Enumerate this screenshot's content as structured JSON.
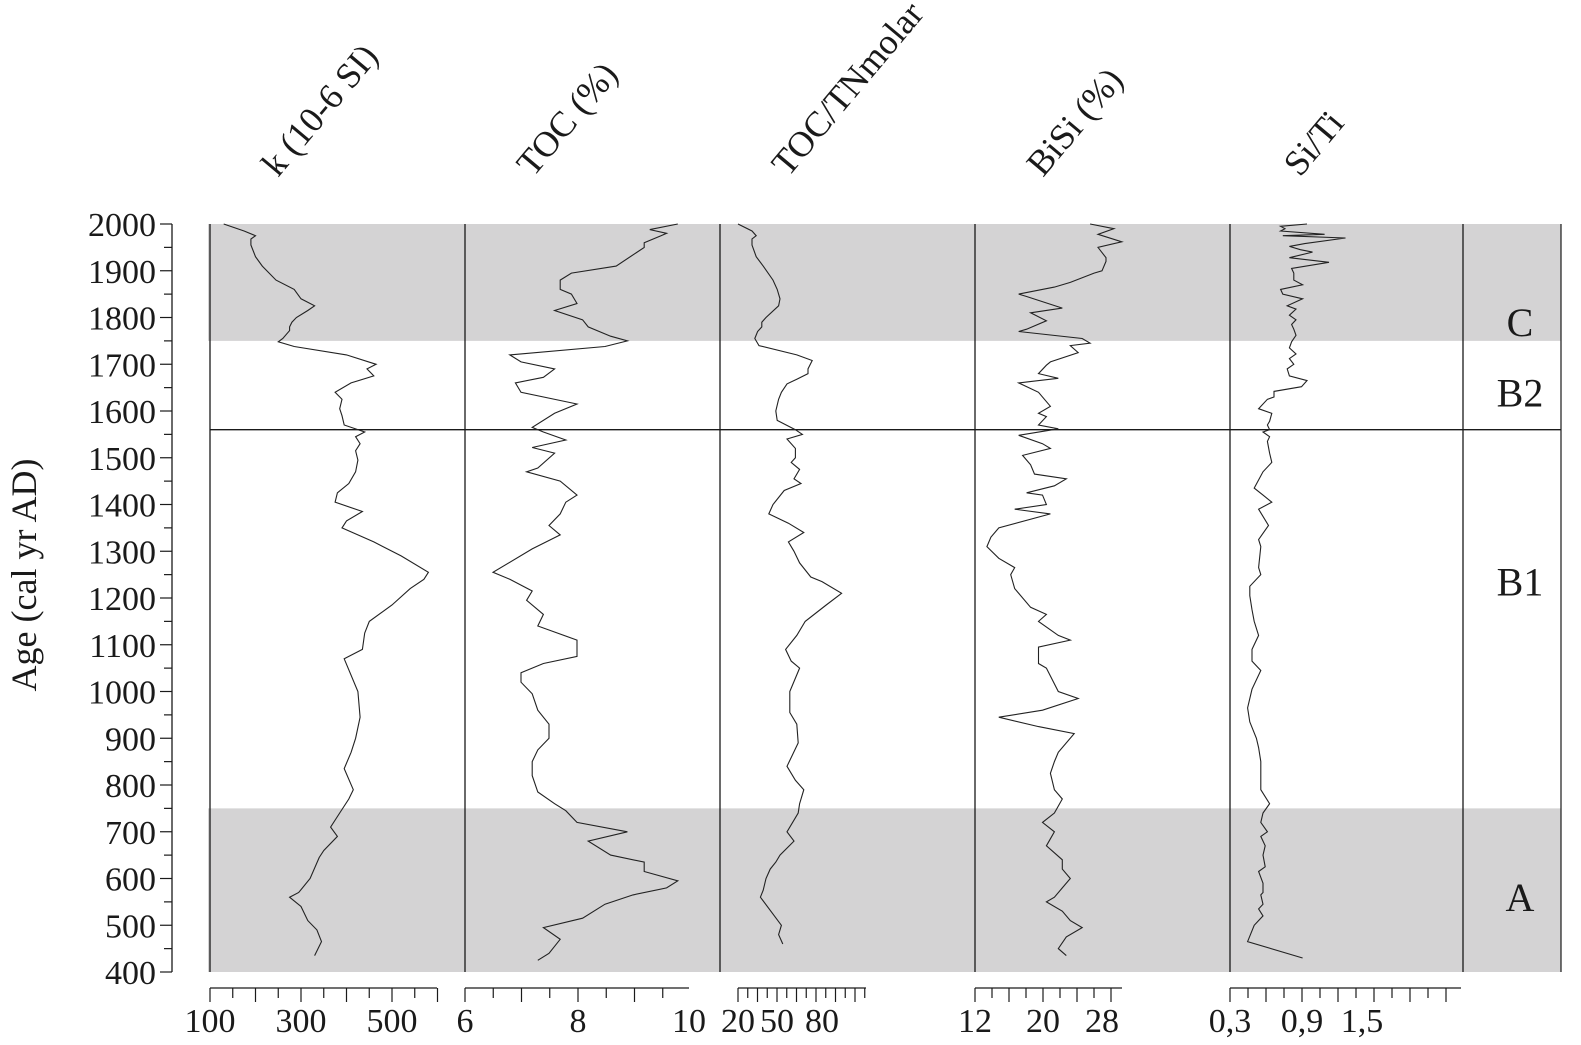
{
  "chart_data": {
    "type": "line",
    "title": "",
    "orientation": "stratigraphic (vertical age axis)",
    "ylabel": "Age (cal yr AD)",
    "ylim": [
      400,
      2000
    ],
    "y_ticks": [
      2000,
      1900,
      1800,
      1700,
      1600,
      1500,
      1400,
      1300,
      1200,
      1100,
      1000,
      900,
      800,
      700,
      600,
      500,
      400
    ],
    "grid": false,
    "zones": [
      {
        "label": "C",
        "from": 1750,
        "to": 2000,
        "shaded": true
      },
      {
        "label": "B2",
        "from": 1560,
        "to": 1750,
        "shaded": false
      },
      {
        "label": "B1",
        "from": 750,
        "to": 1560,
        "shaded": false
      },
      {
        "label": "A",
        "from": 400,
        "to": 750,
        "shaded": true
      }
    ],
    "zone_colors": {
      "shade": "#d4d3d4",
      "line": "#1a1a1a"
    },
    "panels": [
      {
        "name": "k (10-6 SI)",
        "xlabel": "k (10-6 SI)",
        "xlim": [
          100,
          600
        ],
        "x_ticks": [
          "100",
          "300",
          "500"
        ],
        "x_tick_values": [
          100,
          300,
          500
        ],
        "series": {
          "age": [
            2000,
            1985,
            1975,
            1968,
            1955,
            1930,
            1910,
            1880,
            1860,
            1840,
            1825,
            1815,
            1800,
            1790,
            1780,
            1772,
            1755,
            1748,
            1738,
            1720,
            1700,
            1690,
            1675,
            1660,
            1640,
            1625,
            1605,
            1590,
            1570,
            1555,
            1545,
            1530,
            1515,
            1495,
            1470,
            1445,
            1425,
            1405,
            1385,
            1365,
            1350,
            1320,
            1290,
            1255,
            1240,
            1220,
            1185,
            1150,
            1125,
            1090,
            1070,
            1000,
            945,
            900,
            870,
            835,
            790,
            770,
            740,
            710,
            690,
            660,
            645,
            600,
            570,
            560,
            540,
            510,
            490,
            465,
            435
          ],
          "value": [
            130,
            175,
            200,
            190,
            190,
            200,
            215,
            245,
            285,
            300,
            330,
            315,
            290,
            280,
            275,
            275,
            260,
            250,
            285,
            400,
            465,
            445,
            460,
            410,
            375,
            390,
            385,
            390,
            395,
            440,
            420,
            430,
            420,
            425,
            420,
            405,
            380,
            375,
            435,
            400,
            390,
            460,
            520,
            580,
            570,
            540,
            500,
            450,
            440,
            435,
            395,
            425,
            430,
            420,
            410,
            395,
            415,
            405,
            385,
            365,
            380,
            350,
            340,
            320,
            295,
            275,
            300,
            315,
            335,
            345,
            330
          ]
        }
      },
      {
        "name": "TOC (%)",
        "xlabel": "TOC (%)",
        "xlim": [
          6,
          10
        ],
        "x_ticks": [
          "6",
          "8",
          "10"
        ],
        "x_tick_values": [
          6,
          8,
          10
        ],
        "series": {
          "age": [
            2000,
            1988,
            1980,
            1975,
            1960,
            1950,
            1910,
            1895,
            1880,
            1860,
            1850,
            1830,
            1815,
            1795,
            1780,
            1760,
            1750,
            1738,
            1720,
            1705,
            1690,
            1672,
            1660,
            1640,
            1615,
            1595,
            1565,
            1555,
            1538,
            1522,
            1510,
            1478,
            1470,
            1450,
            1420,
            1405,
            1380,
            1355,
            1335,
            1305,
            1255,
            1240,
            1215,
            1195,
            1165,
            1140,
            1110,
            1075,
            1060,
            1040,
            1020,
            995,
            960,
            930,
            900,
            875,
            850,
            820,
            785,
            760,
            745,
            720,
            700,
            680,
            650,
            635,
            615,
            595,
            580,
            565,
            545,
            515,
            495,
            470,
            440,
            425
          ],
          "value": [
            9.8,
            9.3,
            9.6,
            9.5,
            9.2,
            9.2,
            8.7,
            7.9,
            7.7,
            7.7,
            7.9,
            8.0,
            7.6,
            8.1,
            8.2,
            8.6,
            8.9,
            8.5,
            6.8,
            7.0,
            7.6,
            7.4,
            6.9,
            7.0,
            8.0,
            7.6,
            7.2,
            7.4,
            7.8,
            7.2,
            7.6,
            7.3,
            7.1,
            7.7,
            8.0,
            7.8,
            7.7,
            7.5,
            7.7,
            7.2,
            6.5,
            6.8,
            7.2,
            7.1,
            7.4,
            7.3,
            8.0,
            8.0,
            7.4,
            7.0,
            7.0,
            7.2,
            7.3,
            7.5,
            7.5,
            7.3,
            7.2,
            7.2,
            7.3,
            7.6,
            7.8,
            8.0,
            8.9,
            8.2,
            8.6,
            9.2,
            9.2,
            9.8,
            9.6,
            9.0,
            8.5,
            8.1,
            7.4,
            7.7,
            7.5,
            7.3
          ]
        }
      },
      {
        "name": "TOC/TNmolar",
        "xlabel": "TOC/TNmolar",
        "xlim": [
          12,
          112
        ],
        "x_ticks": [
          "20",
          "50",
          "80"
        ],
        "x_tick_values": [
          20,
          50,
          80
        ],
        "series": {
          "age": [
            2000,
            1985,
            1975,
            1968,
            1955,
            1930,
            1910,
            1880,
            1860,
            1840,
            1825,
            1800,
            1790,
            1780,
            1770,
            1755,
            1740,
            1720,
            1708,
            1690,
            1680,
            1668,
            1658,
            1640,
            1625,
            1600,
            1580,
            1560,
            1550,
            1540,
            1520,
            1500,
            1490,
            1475,
            1455,
            1445,
            1430,
            1415,
            1400,
            1380,
            1360,
            1340,
            1320,
            1300,
            1275,
            1245,
            1235,
            1210,
            1185,
            1150,
            1120,
            1090,
            1065,
            1050,
            1000,
            955,
            930,
            890,
            840,
            810,
            790,
            760,
            740,
            700,
            680,
            650,
            635,
            620,
            600,
            575,
            560,
            520,
            500,
            480,
            460
          ],
          "value": [
            20,
            30,
            33,
            30,
            30,
            33,
            38,
            45,
            48,
            50,
            49,
            40,
            37,
            37,
            34,
            32,
            35,
            62,
            73,
            70,
            70,
            62,
            55,
            51,
            49,
            47,
            48,
            61,
            66,
            55,
            61,
            61,
            58,
            64,
            60,
            65,
            53,
            49,
            45,
            42,
            56,
            67,
            56,
            60,
            64,
            72,
            80,
            94,
            83,
            68,
            62,
            54,
            58,
            64,
            57,
            57,
            62,
            63,
            55,
            61,
            67,
            64,
            63,
            55,
            60,
            50,
            47,
            43,
            40,
            38,
            36,
            46,
            51,
            49,
            52
          ]
        }
      },
      {
        "name": "BiSi (%)",
        "xlabel": "BiSi (%)",
        "xlim": [
          12,
          32
        ],
        "x_ticks": [
          "12",
          "20",
          "28"
        ],
        "x_tick_values": [
          12,
          20,
          28
        ],
        "series": {
          "age": [
            2000,
            1990,
            1978,
            1962,
            1950,
            1928,
            1920,
            1900,
            1895,
            1875,
            1865,
            1850,
            1845,
            1820,
            1810,
            1793,
            1775,
            1770,
            1755,
            1745,
            1740,
            1725,
            1705,
            1698,
            1680,
            1670,
            1660,
            1640,
            1610,
            1595,
            1588,
            1570,
            1562,
            1548,
            1530,
            1520,
            1505,
            1485,
            1465,
            1455,
            1440,
            1425,
            1420,
            1400,
            1390,
            1380,
            1350,
            1330,
            1310,
            1285,
            1265,
            1250,
            1220,
            1180,
            1165,
            1150,
            1120,
            1110,
            1095,
            1060,
            1050,
            1000,
            985,
            960,
            945,
            925,
            910,
            870,
            850,
            825,
            790,
            770,
            740,
            720,
            700,
            670,
            655,
            640,
            620,
            600,
            580,
            560,
            550,
            530,
            510,
            495,
            475,
            450,
            435
          ],
          "value": [
            26.5,
            29.5,
            27.5,
            30.5,
            27.5,
            28.5,
            28.5,
            28,
            27,
            24,
            22,
            17.5,
            18.5,
            23,
            19,
            21,
            18.5,
            17.5,
            25.5,
            26.5,
            24,
            25,
            21.5,
            21,
            20,
            22.5,
            17.5,
            20,
            21.5,
            20,
            21,
            20,
            22.5,
            17.5,
            20.5,
            21.5,
            18,
            19,
            19.5,
            23.5,
            22,
            18.5,
            20.5,
            21,
            17,
            21.5,
            15,
            14,
            13.5,
            15,
            17,
            16.5,
            17,
            19,
            21,
            20,
            22.5,
            24,
            20,
            20,
            21,
            22.5,
            25,
            20.5,
            15,
            20,
            24.5,
            22.5,
            22,
            21.5,
            22,
            23,
            22,
            20.5,
            22,
            21,
            22,
            23,
            23,
            24,
            23,
            22,
            21,
            23,
            24,
            25.5,
            23.5,
            22.5,
            23.5
          ]
        }
      },
      {
        "name": "Si/Ti",
        "xlabel": "Si/Ti",
        "xlim": [
          0.3,
          1.5
        ],
        "x_ticks": [
          "0,3",
          "0,9",
          "1,5"
        ],
        "x_tick_values": [
          0.3,
          0.9,
          1.5
        ],
        "series": {
          "age": [
            2000,
            1995,
            1990,
            1985,
            1978,
            1975,
            1970,
            1958,
            1952,
            1945,
            1940,
            1928,
            1918,
            1905,
            1895,
            1880,
            1870,
            1860,
            1850,
            1840,
            1825,
            1818,
            1805,
            1795,
            1785,
            1775,
            1762,
            1748,
            1735,
            1722,
            1712,
            1700,
            1690,
            1675,
            1665,
            1652,
            1642,
            1630,
            1625,
            1605,
            1595,
            1578,
            1570,
            1560,
            1555,
            1545,
            1535,
            1510,
            1490,
            1470,
            1435,
            1420,
            1405,
            1390,
            1355,
            1325,
            1310,
            1265,
            1250,
            1225,
            1205,
            1175,
            1150,
            1120,
            1090,
            1065,
            1045,
            1005,
            965,
            935,
            900,
            880,
            850,
            790,
            760,
            740,
            720,
            700,
            690,
            670,
            650,
            625,
            615,
            590,
            570,
            565,
            545,
            535,
            520,
            500,
            465,
            430
          ],
          "value": [
            1.0,
            0.76,
            0.8,
            0.76,
            1.16,
            0.78,
            1.35,
            0.98,
            0.84,
            0.94,
            1.05,
            0.84,
            1.2,
            0.86,
            0.88,
            0.88,
            0.96,
            0.76,
            0.78,
            0.96,
            0.82,
            0.9,
            0.84,
            0.9,
            0.86,
            0.88,
            0.9,
            0.86,
            0.84,
            0.9,
            0.84,
            0.88,
            0.82,
            0.84,
            1.0,
            0.95,
            0.7,
            0.7,
            0.64,
            0.56,
            0.68,
            0.66,
            0.64,
            0.66,
            0.6,
            0.66,
            0.64,
            0.66,
            0.68,
            0.6,
            0.52,
            0.6,
            0.68,
            0.56,
            0.65,
            0.56,
            0.58,
            0.56,
            0.58,
            0.48,
            0.48,
            0.5,
            0.52,
            0.56,
            0.5,
            0.5,
            0.58,
            0.5,
            0.46,
            0.48,
            0.54,
            0.56,
            0.58,
            0.58,
            0.66,
            0.6,
            0.58,
            0.64,
            0.58,
            0.62,
            0.6,
            0.62,
            0.56,
            0.6,
            0.6,
            0.58,
            0.6,
            0.56,
            0.6,
            0.52,
            0.46,
            0.96
          ]
        }
      }
    ]
  },
  "labels": {
    "ylabel": "Age (cal yr AD)",
    "panel_titles": [
      "k (10-6 SI)",
      "TOC (%)",
      "TOC/TNmolar",
      "BiSi (%)",
      "Si/Ti"
    ],
    "zones": [
      "C",
      "B2",
      "B1",
      "A"
    ]
  }
}
